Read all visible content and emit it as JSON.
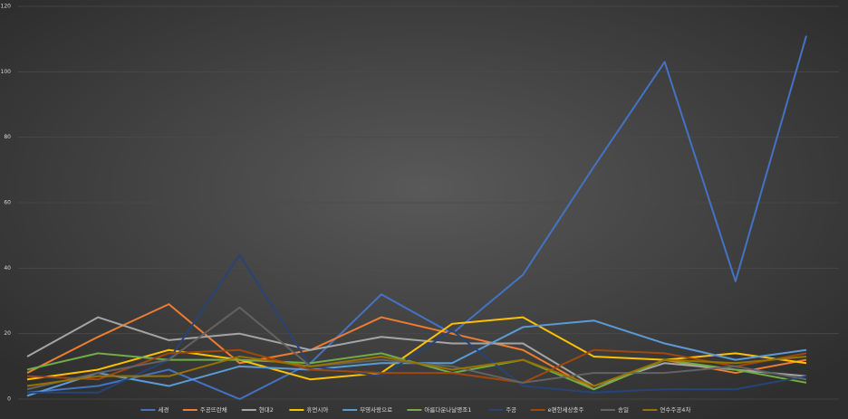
{
  "chart_data": {
    "type": "line",
    "categories": [
      null,
      null,
      null,
      null,
      null,
      null,
      null,
      null,
      null,
      null,
      null,
      null
    ],
    "ylim": [
      0,
      120
    ],
    "yticks": [
      0,
      20,
      40,
      60,
      80,
      100,
      120
    ],
    "grid": true,
    "legend": "bottom",
    "series": [
      {
        "name": "세경",
        "color": "#4472c4",
        "values": [
          2,
          4,
          9,
          0,
          11,
          32,
          20,
          38,
          71,
          103,
          36,
          111
        ]
      },
      {
        "name": "주공뜨란채",
        "color": "#ed7d31",
        "values": [
          8,
          19,
          29,
          11,
          15,
          25,
          20,
          15,
          3,
          12,
          8,
          12
        ]
      },
      {
        "name": "현대2",
        "color": "#a5a5a5",
        "values": [
          13,
          25,
          18,
          20,
          15,
          19,
          17,
          17,
          4,
          11,
          9,
          7
        ]
      },
      {
        "name": "휴먼시아",
        "color": "#ffc000",
        "values": [
          6,
          9,
          15,
          12,
          6,
          8,
          23,
          25,
          13,
          12,
          14,
          11
        ]
      },
      {
        "name": "부영사랑으로",
        "color": "#5b9bd5",
        "values": [
          1,
          8,
          4,
          10,
          9,
          11,
          11,
          22,
          24,
          17,
          12,
          15
        ]
      },
      {
        "name": "아름다운나날명조1",
        "color": "#70ad47",
        "values": [
          9,
          14,
          12,
          12,
          11,
          14,
          8,
          12,
          3,
          12,
          9,
          5
        ]
      },
      {
        "name": "주공",
        "color": "#264478",
        "values": [
          2,
          2,
          12,
          44,
          10,
          7,
          21,
          4,
          2,
          3,
          3,
          7
        ]
      },
      {
        "name": "e편한세상충주",
        "color": "#9e480e",
        "values": [
          7,
          6,
          14,
          15,
          9,
          8,
          8,
          5,
          15,
          14,
          10,
          14
        ]
      },
      {
        "name": "송일",
        "color": "#636363",
        "values": [
          3,
          8,
          12,
          28,
          10,
          12,
          10,
          5,
          8,
          8,
          10,
          6
        ]
      },
      {
        "name": "연수주공4차",
        "color": "#997300",
        "values": [
          4,
          7,
          7,
          13,
          10,
          13,
          9,
          12,
          4,
          12,
          11,
          13
        ]
      }
    ]
  }
}
